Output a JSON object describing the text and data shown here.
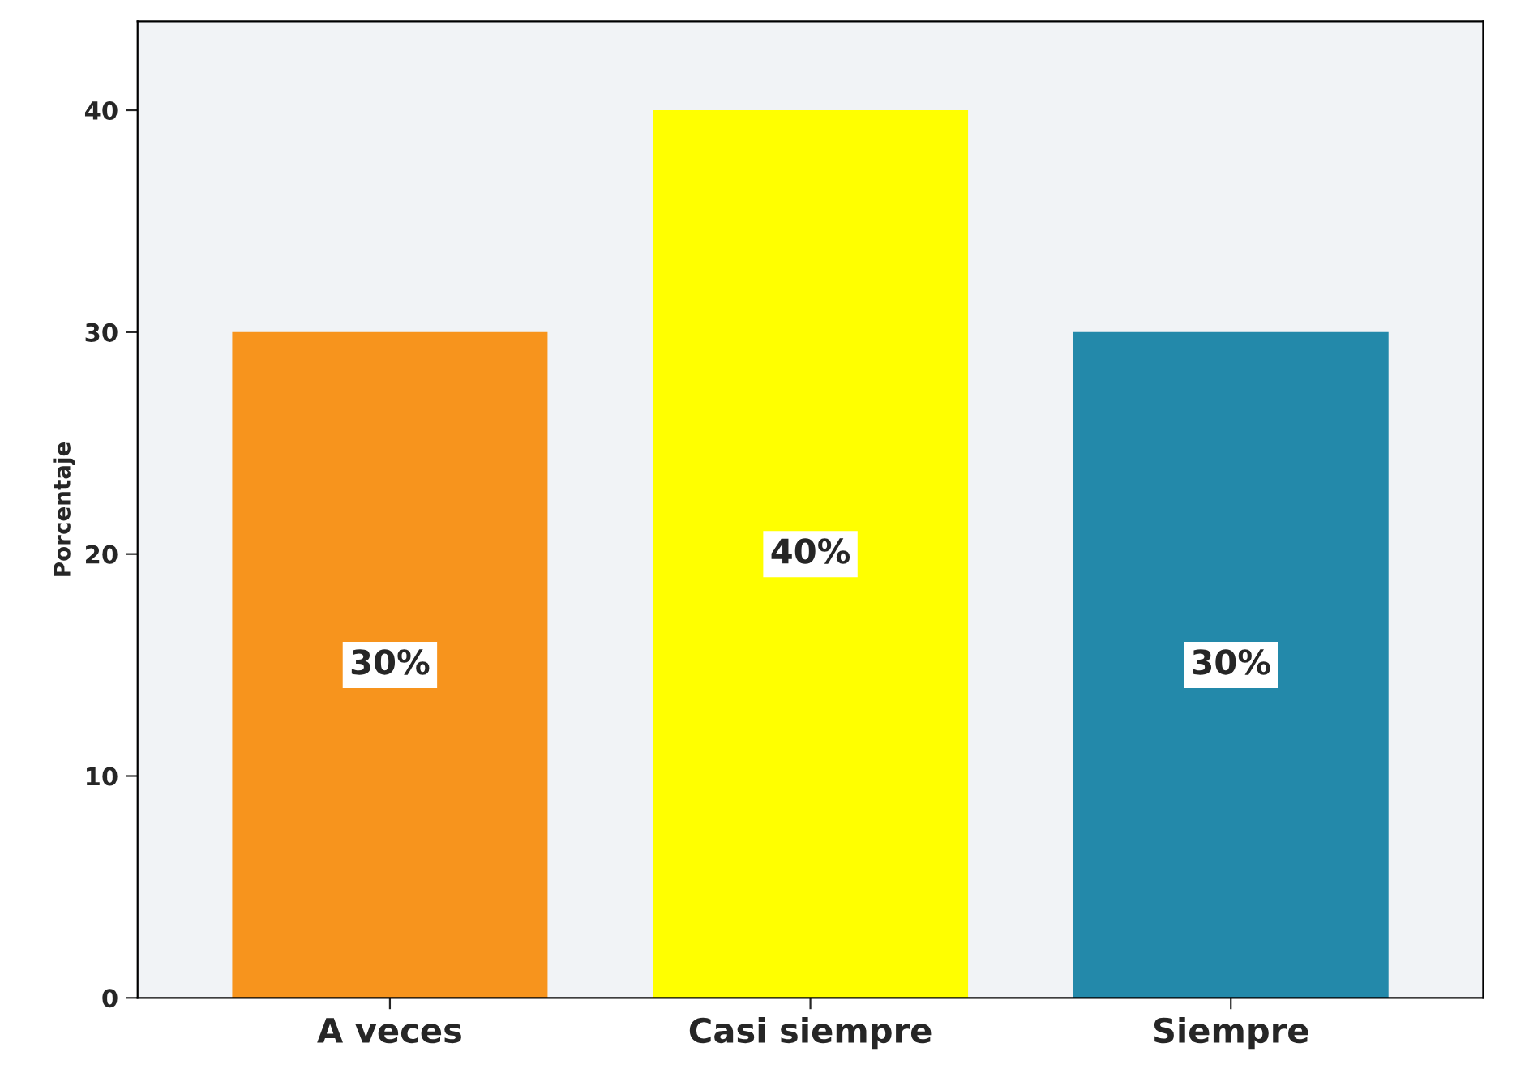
{
  "chart_data": {
    "type": "bar",
    "ylabel": "Porcentaje",
    "categories": [
      "A veces",
      "Casi siempre",
      "Siempre"
    ],
    "values": [
      30,
      40,
      30
    ],
    "colors": [
      "#f7941d",
      "#ffff00",
      "#2389aa"
    ],
    "value_labels": [
      "30%",
      "40%",
      "30%"
    ],
    "ylim": [
      0,
      44
    ],
    "yticks": [
      0,
      10,
      20,
      30,
      40
    ],
    "grid": false
  }
}
